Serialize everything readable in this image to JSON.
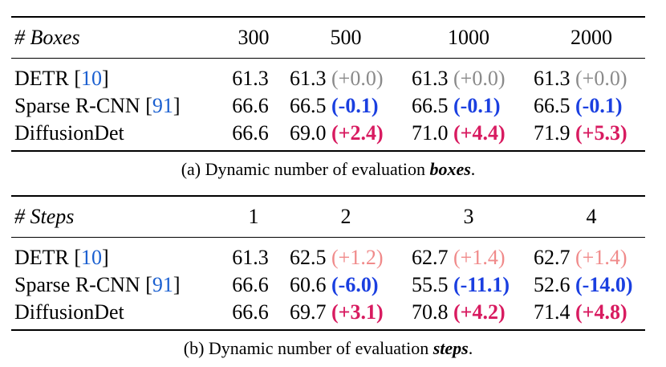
{
  "table_a": {
    "header": [
      "# Boxes",
      "300",
      "500",
      "1000",
      "2000"
    ],
    "rows": [
      {
        "method": "DETR [",
        "cite": "10",
        "suffix": "]",
        "base": "61.3",
        "cells": [
          {
            "value": "61.3",
            "delta": "(+0.0)",
            "style": "gray"
          },
          {
            "value": "61.3",
            "delta": "(+0.0)",
            "style": "gray"
          },
          {
            "value": "61.3",
            "delta": "(+0.0)",
            "style": "gray"
          }
        ]
      },
      {
        "method": "Sparse R-CNN [",
        "cite": "91",
        "suffix": "]",
        "base": "66.6",
        "cells": [
          {
            "value": "66.5",
            "delta": "(-0.1)",
            "style": "blue"
          },
          {
            "value": "66.5",
            "delta": "(-0.1)",
            "style": "blue"
          },
          {
            "value": "66.5",
            "delta": "(-0.1)",
            "style": "blue"
          }
        ]
      },
      {
        "method": "DiffusionDet",
        "cite": "",
        "suffix": "",
        "base": "66.6",
        "cells": [
          {
            "value": "69.0",
            "delta": "(+2.4)",
            "style": "red"
          },
          {
            "value": "71.0",
            "delta": "(+4.4)",
            "style": "red"
          },
          {
            "value": "71.9",
            "delta": "(+5.3)",
            "style": "red"
          }
        ]
      }
    ],
    "caption_prefix": "(a) Dynamic number of evaluation ",
    "caption_emph": "boxes",
    "caption_suffix": "."
  },
  "table_b": {
    "header": [
      "# Steps",
      "1",
      "2",
      "3",
      "4"
    ],
    "rows": [
      {
        "method": "DETR [",
        "cite": "10",
        "suffix": "]",
        "base": "61.3",
        "cells": [
          {
            "value": "62.5",
            "delta": "(+1.2)",
            "style": "pink"
          },
          {
            "value": "62.7",
            "delta": "(+1.4)",
            "style": "pink"
          },
          {
            "value": "62.7",
            "delta": "(+1.4)",
            "style": "pink"
          }
        ]
      },
      {
        "method": "Sparse R-CNN [",
        "cite": "91",
        "suffix": "]",
        "base": "66.6",
        "cells": [
          {
            "value": "60.6",
            "delta": "(-6.0)",
            "style": "blue"
          },
          {
            "value": "55.5",
            "delta": "(-11.1)",
            "style": "blue"
          },
          {
            "value": "52.6",
            "delta": "(-14.0)",
            "style": "blue"
          }
        ]
      },
      {
        "method": "DiffusionDet",
        "cite": "",
        "suffix": "",
        "base": "66.6",
        "cells": [
          {
            "value": "69.7",
            "delta": "(+3.1)",
            "style": "red"
          },
          {
            "value": "70.8",
            "delta": "(+4.2)",
            "style": "red"
          },
          {
            "value": "71.4",
            "delta": "(+4.8)",
            "style": "red"
          }
        ]
      }
    ],
    "caption_prefix": "(b) Dynamic number of evaluation ",
    "caption_emph": "steps",
    "caption_suffix": "."
  }
}
